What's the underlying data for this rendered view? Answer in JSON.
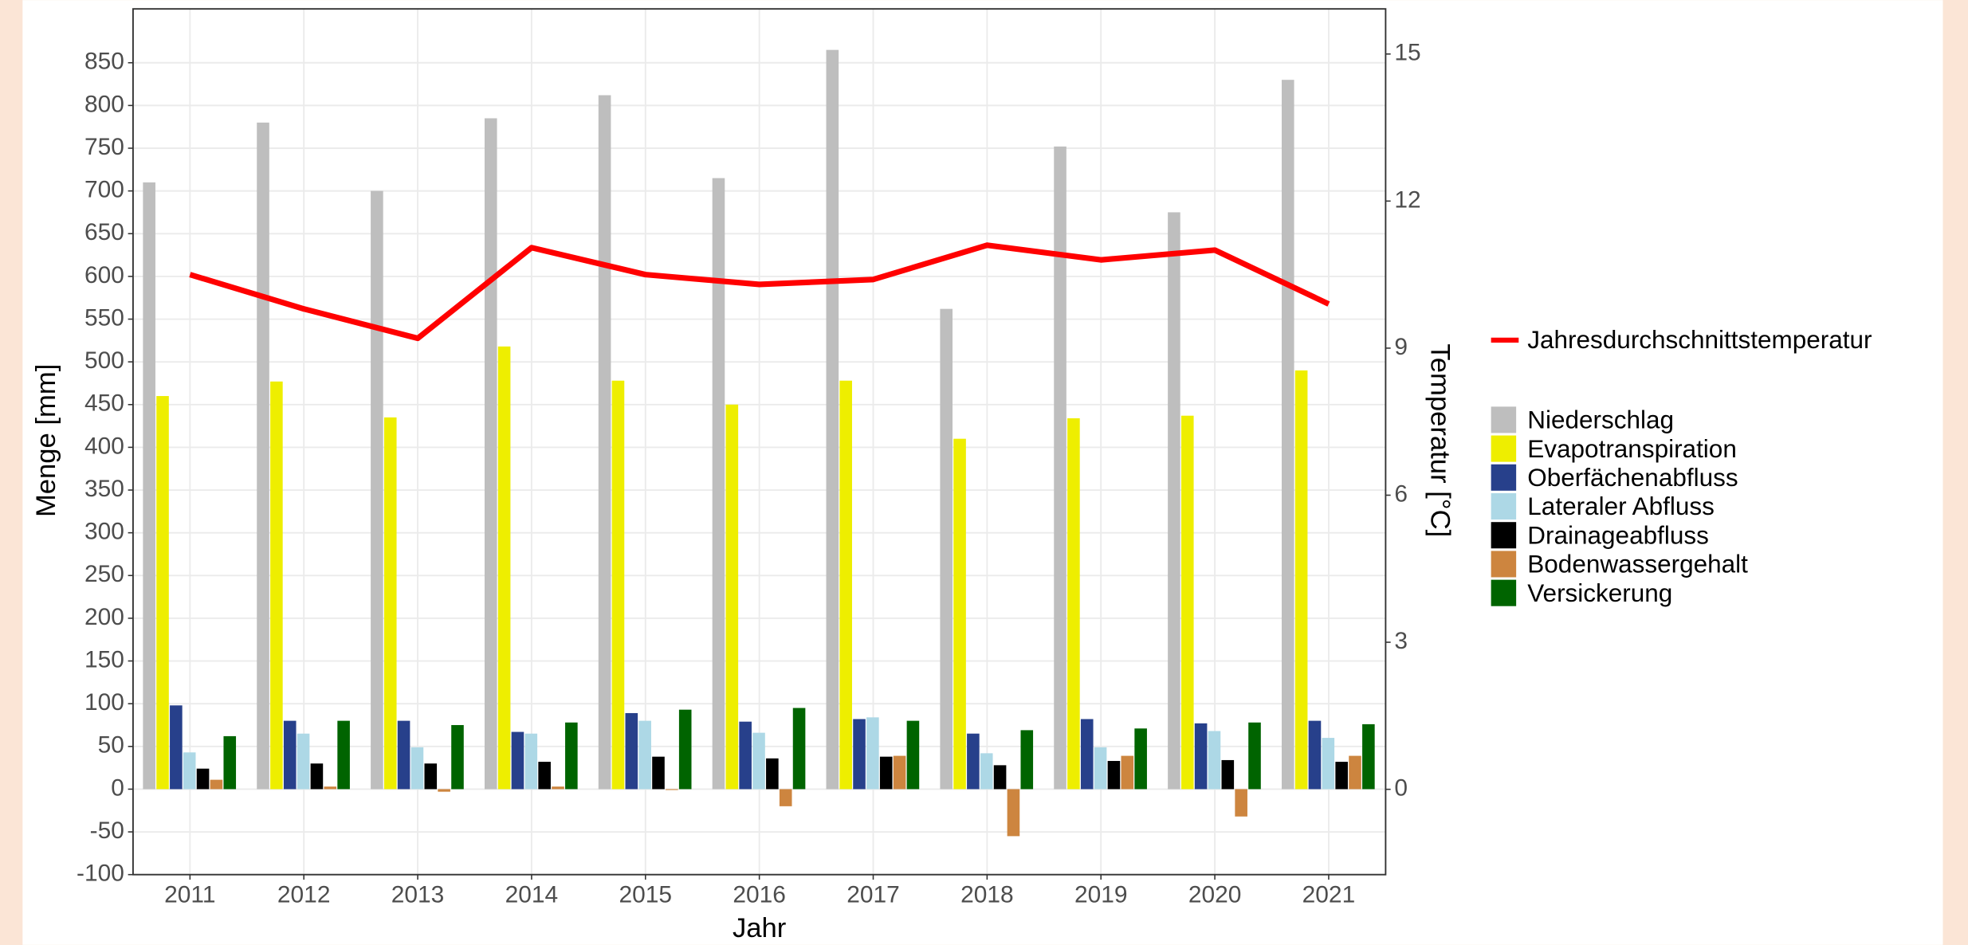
{
  "chart_data": {
    "type": "bar",
    "x_label": "Jahr",
    "y_label": "Menge [mm]",
    "y2_label": "Temperatur [°C]",
    "categories": [
      "2011",
      "2012",
      "2013",
      "2014",
      "2015",
      "2016",
      "2017",
      "2018",
      "2019",
      "2020",
      "2021"
    ],
    "series": [
      {
        "name": "Jahresdurchschnittstemperatur",
        "color": "#ff0000",
        "type": "line",
        "axis": "y2",
        "values": [
          10.5,
          9.8,
          9.2,
          11.05,
          10.5,
          10.3,
          10.4,
          11.1,
          10.8,
          11.0,
          9.9
        ]
      },
      {
        "name": "Niederschlag",
        "color": "#bebebe",
        "values": [
          710,
          780,
          700,
          785,
          812,
          715,
          865,
          562,
          752,
          675,
          830
        ]
      },
      {
        "name": "Evapotranspiration",
        "color": "#eeee00",
        "values": [
          460,
          477,
          435,
          518,
          478,
          450,
          478,
          410,
          434,
          437,
          490
        ]
      },
      {
        "name": "Oberfächenabfluss",
        "color": "#27408b",
        "values": [
          98,
          80,
          80,
          67,
          89,
          79,
          82,
          65,
          82,
          77,
          80
        ]
      },
      {
        "name": "Lateraler Abfluss",
        "color": "#add8e6",
        "values": [
          43,
          65,
          49,
          65,
          80,
          66,
          84,
          42,
          49,
          68,
          60
        ]
      },
      {
        "name": "Drainageabfluss",
        "color": "#000000",
        "values": [
          24,
          30,
          30,
          32,
          38,
          36,
          38,
          28,
          33,
          34,
          32
        ]
      },
      {
        "name": "Bodenwassergehalt",
        "color": "#cd853f",
        "values": [
          11,
          3,
          -3,
          3,
          -1,
          -20,
          39,
          -55,
          39,
          -32,
          39
        ]
      },
      {
        "name": "Versickerung",
        "color": "#006400",
        "values": [
          62,
          80,
          75,
          78,
          93,
          95,
          80,
          69,
          71,
          78,
          76
        ]
      }
    ],
    "ylim": [
      -100,
      913
    ],
    "yticks": [
      -100,
      -50,
      0,
      50,
      100,
      150,
      200,
      250,
      300,
      350,
      400,
      450,
      500,
      550,
      600,
      650,
      700,
      750,
      800,
      850
    ],
    "y2lim": [
      -1.74,
      15.92
    ],
    "y2ticks": [
      0,
      3,
      6,
      9,
      12,
      15
    ],
    "grid": true
  }
}
